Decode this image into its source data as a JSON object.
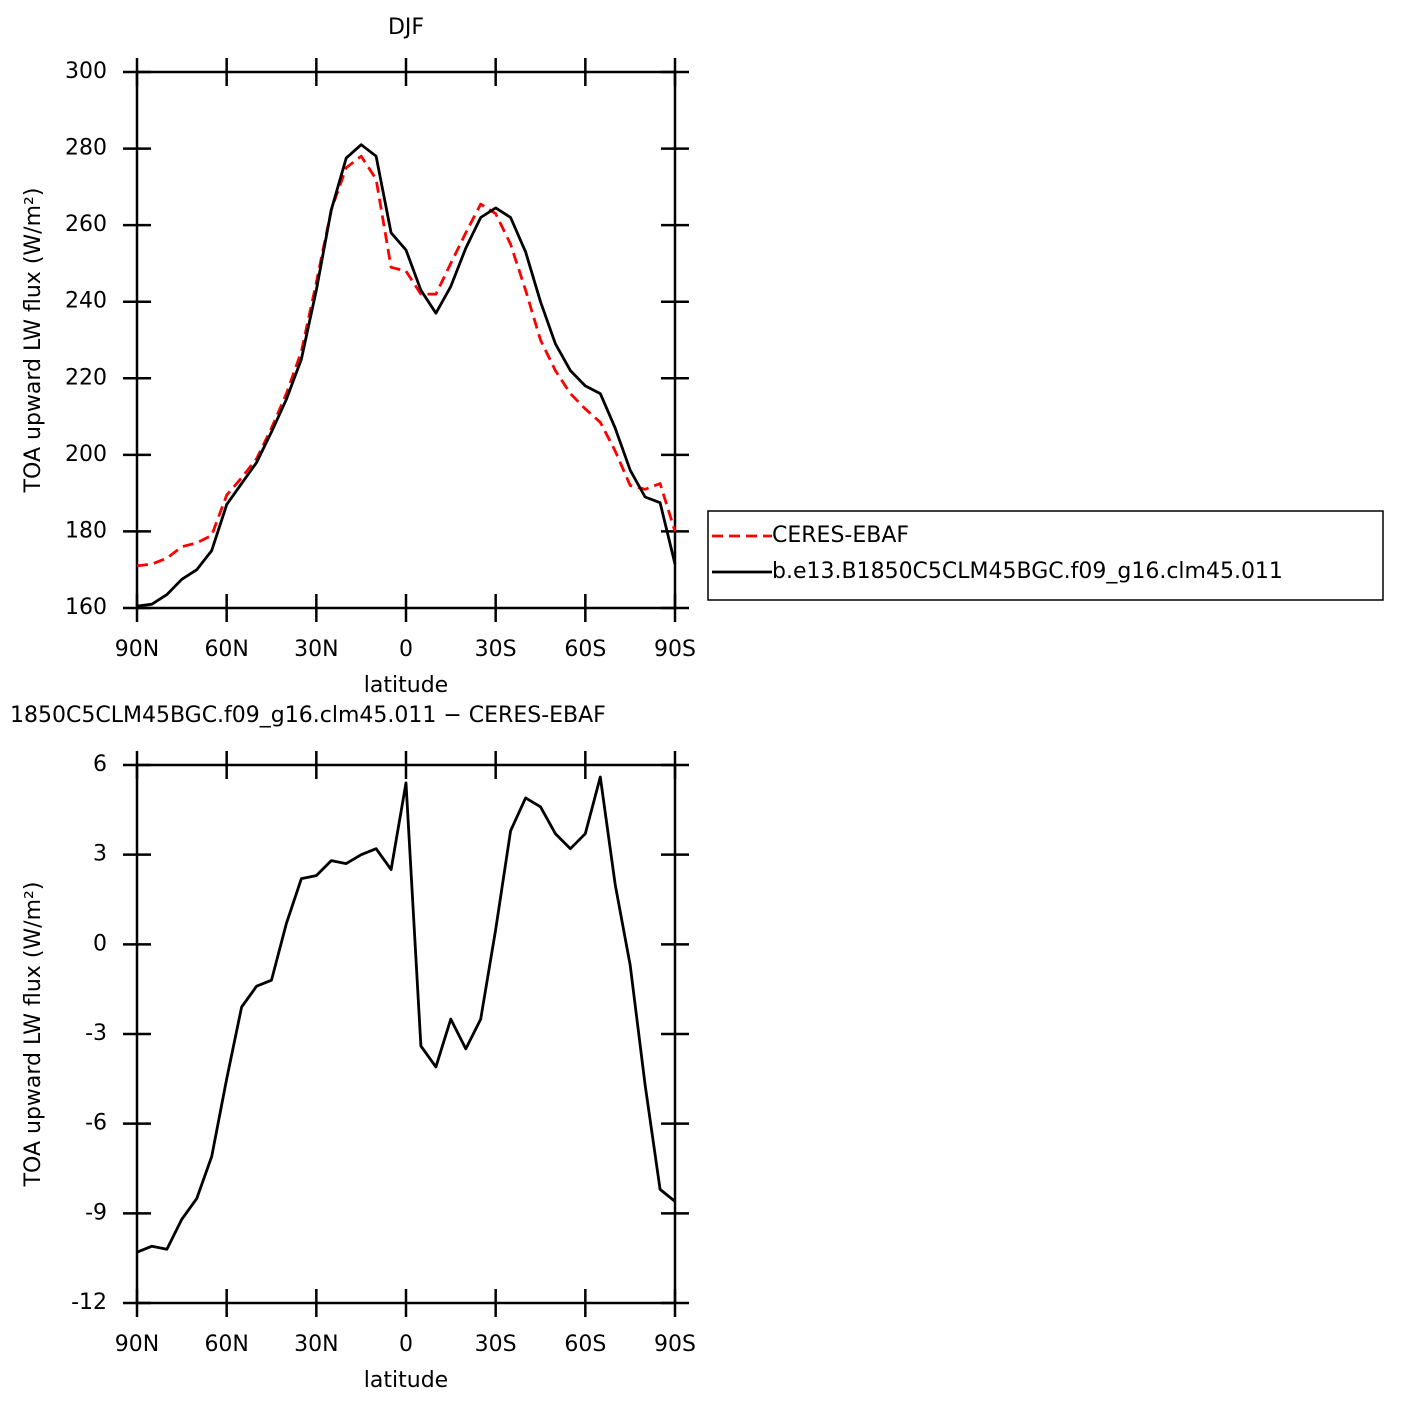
{
  "chart_data": [
    {
      "type": "line",
      "title": "DJF",
      "x_label": "latitude",
      "y_label": "TOA upward LW flux (W/m²)",
      "x": [
        90,
        85,
        80,
        75,
        70,
        65,
        60,
        55,
        50,
        45,
        40,
        35,
        30,
        25,
        20,
        15,
        10,
        5,
        0,
        -5,
        -10,
        -15,
        -20,
        -25,
        -30,
        -35,
        -40,
        -45,
        -50,
        -55,
        -60,
        -65,
        -70,
        -75,
        -80,
        -85,
        -90
      ],
      "series": [
        {
          "name": "CERES-EBAF",
          "color": "#ff0000",
          "style": "dashed",
          "values": [
            171,
            171.5,
            173,
            176,
            177,
            179,
            189.5,
            194,
            199,
            207,
            216,
            227,
            245,
            264,
            275,
            278,
            272,
            249,
            248,
            242,
            242,
            250,
            258,
            265.5,
            263,
            255,
            243,
            230,
            222,
            216,
            212,
            208.5,
            201,
            192,
            191,
            192.5,
            180
          ]
        },
        {
          "name": "b.e13.B1850C5CLM45BGC.f09_g16.clm45.011",
          "color": "#000000",
          "style": "solid",
          "values": [
            160.5,
            161,
            163.5,
            167.5,
            170,
            175,
            187,
            192.5,
            198,
            206,
            214.5,
            225,
            243,
            264,
            277.5,
            281,
            278,
            258,
            253.5,
            243,
            237,
            244,
            254,
            262,
            264.5,
            262,
            253,
            240,
            229,
            222,
            218,
            216,
            207,
            196,
            189,
            187.5,
            171.5
          ]
        }
      ],
      "xlim": [
        90,
        -90
      ],
      "xticks": [
        {
          "value": 90,
          "label": "90N"
        },
        {
          "value": 60,
          "label": "60N"
        },
        {
          "value": 30,
          "label": "30N"
        },
        0,
        {
          "value": -30,
          "label": "30S"
        },
        {
          "value": -60,
          "label": "60S"
        },
        {
          "value": -90,
          "label": "90S"
        }
      ],
      "ylim": [
        160,
        300
      ],
      "yticks": [
        160,
        180,
        200,
        220,
        240,
        260,
        280,
        300
      ],
      "legend": "right"
    },
    {
      "type": "line",
      "title": "1850C5CLM45BGC.f09_g16.clm45.011 − CERES-EBAF",
      "x_label": "latitude",
      "y_label": "TOA upward LW flux (W/m²)",
      "x": [
        90,
        85,
        80,
        75,
        70,
        65,
        60,
        55,
        50,
        45,
        40,
        35,
        30,
        25,
        20,
        15,
        10,
        5,
        0,
        -5,
        -10,
        -15,
        -20,
        -25,
        -30,
        -35,
        -40,
        -45,
        -50,
        -55,
        -60,
        -65,
        -70,
        -75,
        -80,
        -85,
        -90
      ],
      "color": "#000000",
      "values": [
        -10.3,
        -10.1,
        -10.2,
        -9.2,
        -8.5,
        -7.1,
        -4.5,
        -2.1,
        -1.4,
        -1.2,
        0.7,
        2.2,
        2.3,
        2.8,
        2.7,
        3.0,
        3.2,
        2.5,
        5.4,
        -3.4,
        -4.1,
        -2.5,
        -3.5,
        -2.5,
        0.5,
        3.8,
        4.9,
        4.6,
        3.7,
        3.2,
        3.7,
        5.6,
        2.0,
        -0.7,
        -4.7,
        -8.2,
        -8.6
      ],
      "xlim": [
        90,
        -90
      ],
      "xticks": [
        {
          "value": 90,
          "label": "90N"
        },
        {
          "value": 60,
          "label": "60N"
        },
        {
          "value": 30,
          "label": "30N"
        },
        0,
        {
          "value": -30,
          "label": "30S"
        },
        {
          "value": -60,
          "label": "60S"
        },
        {
          "value": -90,
          "label": "90S"
        }
      ],
      "ylim": [
        -12,
        6
      ],
      "yticks": [
        -12,
        -9,
        -6,
        -3,
        0,
        3,
        6
      ]
    }
  ]
}
